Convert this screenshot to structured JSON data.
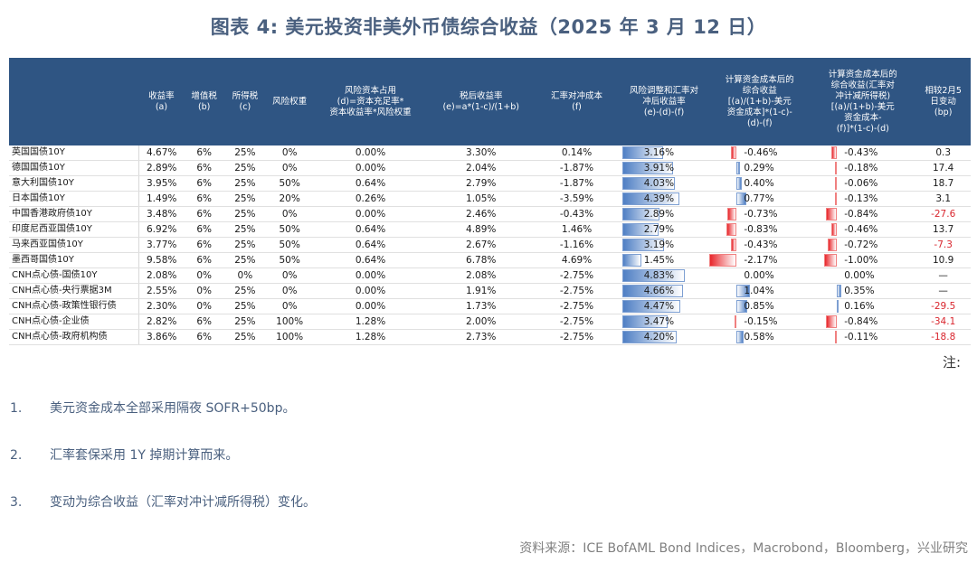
{
  "title": "图表 4:   美元投资非美外币债综合收益（2025 年 3 月 12 日）",
  "headers": [
    "",
    "收益率\n(a)",
    "增值税\n(b)",
    "所得税\n(c)",
    "风险权重",
    "风险资本占用\n(d)=资本充足率*\n资本收益率*风险权重",
    "税后收益率\n(e)=a*(1-c)/(1+b)",
    "汇率对冲成本\n(f)",
    "风险调整和汇率对\n冲后收益率\n(e)-(d)-(f)",
    "计算资金成本后的\n综合收益\n[(a)/(1+b)-美元\n资金成本]*(1-c)-\n(d)-(f)",
    "计算资金成本后的\n综合收益(汇率对\n冲计减所得税)\n[(a)/(1+b)-美元\n资金成本-\n(f)]*(1-c)-(d)",
    "相较2月5\n日变动\n(bp)"
  ],
  "rows": [
    {
      "name": "英国国债10Y",
      "a": "4.67%",
      "b": "6%",
      "c": "25%",
      "w": "0%",
      "d": "0.00%",
      "e": "3.30%",
      "f": "0.14%",
      "g": "3.16%",
      "g_v": 3.16,
      "h": "-0.46%",
      "h_v": -0.46,
      "i": "-0.43%",
      "i_v": -0.43,
      "j": "0.3"
    },
    {
      "name": "德国国债10Y",
      "a": "2.89%",
      "b": "6%",
      "c": "25%",
      "w": "0%",
      "d": "0.00%",
      "e": "2.04%",
      "f": "-1.87%",
      "g": "3.91%",
      "g_v": 3.91,
      "h": "0.29%",
      "h_v": 0.29,
      "i": "-0.18%",
      "i_v": -0.18,
      "j": "17.4"
    },
    {
      "name": "意大利国债10Y",
      "a": "3.95%",
      "b": "6%",
      "c": "25%",
      "w": "50%",
      "d": "0.64%",
      "e": "2.79%",
      "f": "-1.87%",
      "g": "4.03%",
      "g_v": 4.03,
      "h": "0.40%",
      "h_v": 0.4,
      "i": "-0.06%",
      "i_v": -0.06,
      "j": "18.7"
    },
    {
      "name": "日本国债10Y",
      "a": "1.49%",
      "b": "6%",
      "c": "25%",
      "w": "20%",
      "d": "0.26%",
      "e": "1.05%",
      "f": "-3.59%",
      "g": "4.39%",
      "g_v": 4.39,
      "h": "0.77%",
      "h_v": 0.77,
      "i": "-0.13%",
      "i_v": -0.13,
      "j": "3.1"
    },
    {
      "name": "中国香港政府债10Y",
      "a": "3.48%",
      "b": "6%",
      "c": "25%",
      "w": "0%",
      "d": "0.00%",
      "e": "2.46%",
      "f": "-0.43%",
      "g": "2.89%",
      "g_v": 2.89,
      "h": "-0.73%",
      "h_v": -0.73,
      "i": "-0.84%",
      "i_v": -0.84,
      "j": "-27.6"
    },
    {
      "name": "印度尼西亚国债10Y",
      "a": "6.92%",
      "b": "6%",
      "c": "25%",
      "w": "50%",
      "d": "0.64%",
      "e": "4.89%",
      "f": "1.46%",
      "g": "2.79%",
      "g_v": 2.79,
      "h": "-0.83%",
      "h_v": -0.83,
      "i": "-0.46%",
      "i_v": -0.46,
      "j": "13.7"
    },
    {
      "name": "马来西亚国债10Y",
      "a": "3.77%",
      "b": "6%",
      "c": "25%",
      "w": "50%",
      "d": "0.64%",
      "e": "2.67%",
      "f": "-1.16%",
      "g": "3.19%",
      "g_v": 3.19,
      "h": "-0.43%",
      "h_v": -0.43,
      "i": "-0.72%",
      "i_v": -0.72,
      "j": "-7.3"
    },
    {
      "name": "墨西哥国债10Y",
      "a": "9.58%",
      "b": "6%",
      "c": "25%",
      "w": "50%",
      "d": "0.64%",
      "e": "6.78%",
      "f": "4.69%",
      "g": "1.45%",
      "g_v": 1.45,
      "h": "-2.17%",
      "h_v": -2.17,
      "i": "-1.00%",
      "i_v": -1.0,
      "j": "10.9"
    },
    {
      "name": "CNH点心债-国债10Y",
      "a": "2.08%",
      "b": "0%",
      "c": "0%",
      "w": "0%",
      "d": "0.00%",
      "e": "2.08%",
      "f": "-2.75%",
      "g": "4.83%",
      "g_v": 4.83,
      "h": "0.00%",
      "h_v": 0.0,
      "i": "0.00%",
      "i_v": 0.0,
      "j": "—"
    },
    {
      "name": "CNH点心债-央行票据3M",
      "a": "2.55%",
      "b": "0%",
      "c": "25%",
      "w": "0%",
      "d": "0.00%",
      "e": "1.91%",
      "f": "-2.75%",
      "g": "4.66%",
      "g_v": 4.66,
      "h": "1.04%",
      "h_v": 1.04,
      "i": "0.35%",
      "i_v": 0.35,
      "j": "—"
    },
    {
      "name": "CNH点心债-政策性银行债",
      "a": "2.30%",
      "b": "0%",
      "c": "25%",
      "w": "0%",
      "d": "0.00%",
      "e": "1.73%",
      "f": "-2.75%",
      "g": "4.47%",
      "g_v": 4.47,
      "h": "0.85%",
      "h_v": 0.85,
      "i": "0.16%",
      "i_v": 0.16,
      "j": "-29.5"
    },
    {
      "name": "CNH点心债-企业债",
      "a": "2.82%",
      "b": "6%",
      "c": "25%",
      "w": "100%",
      "d": "1.28%",
      "e": "2.00%",
      "f": "-2.75%",
      "g": "3.47%",
      "g_v": 3.47,
      "h": "-0.15%",
      "h_v": -0.15,
      "i": "-0.84%",
      "i_v": -0.84,
      "j": "-34.1"
    },
    {
      "name": "CNH点心债-政府机构债",
      "a": "3.86%",
      "b": "6%",
      "c": "25%",
      "w": "100%",
      "d": "1.28%",
      "e": "2.73%",
      "f": "-2.75%",
      "g": "4.20%",
      "g_v": 4.2,
      "h": "0.58%",
      "h_v": 0.58,
      "i": "-0.11%",
      "i_v": -0.11,
      "j": "-18.8"
    }
  ],
  "note_label": "注:",
  "notes": [
    {
      "num": "1.",
      "text": "美元资金成本全部采用隔夜 SOFR+50bp。"
    },
    {
      "num": "2.",
      "text": "汇率套保采用 1Y 掉期计算而来。"
    },
    {
      "num": "3.",
      "text": "变动为综合收益（汇率对冲计减所得税）变化。"
    }
  ],
  "source": "资料来源：ICE BofAML Bond Indices，Macrobond，Bloomberg，兴业研究"
}
